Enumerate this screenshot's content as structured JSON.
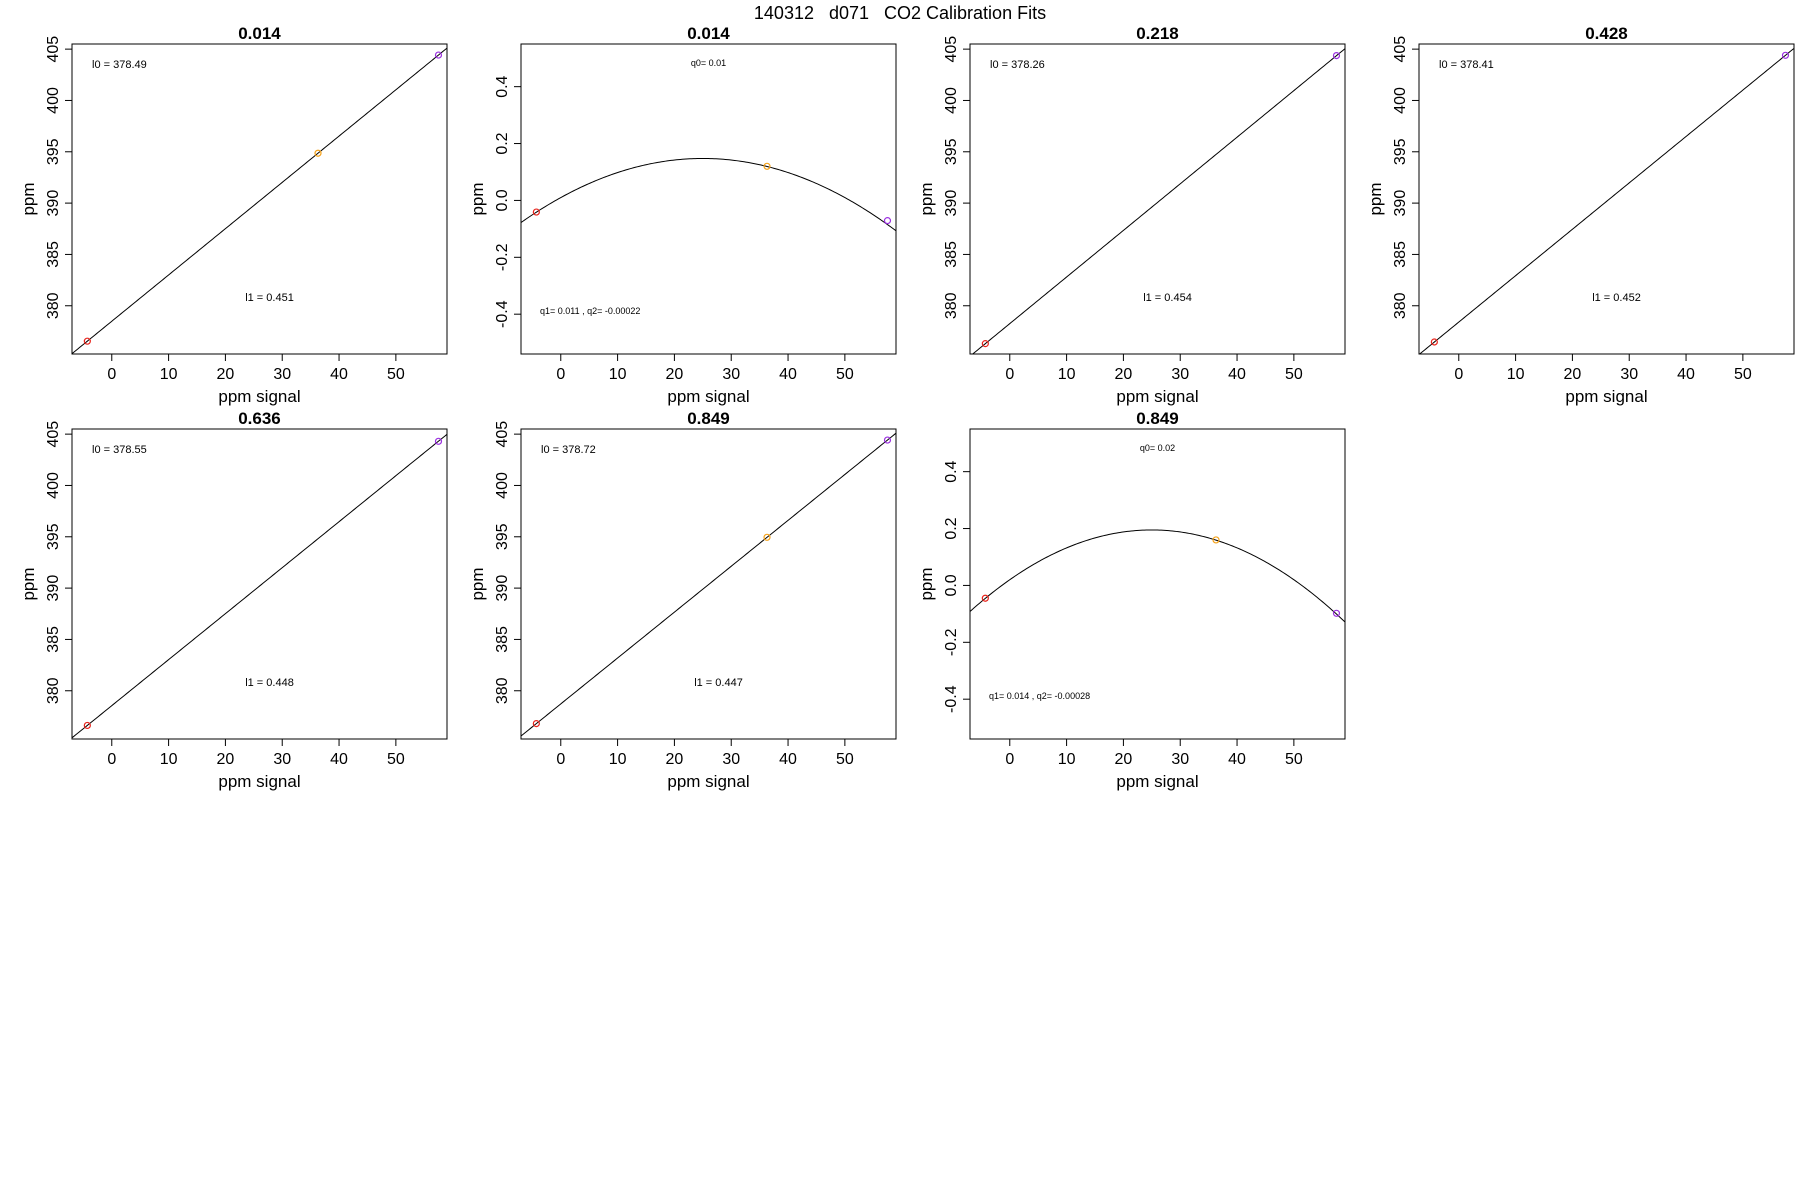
{
  "figure": {
    "title": "140312   d071   CO2 Calibration Fits"
  },
  "chart_data": [
    {
      "type": "scatter",
      "title": "0.014",
      "xlabel": "ppm signal",
      "ylabel": "ppm",
      "xlim": [
        -7,
        59
      ],
      "ylim": [
        375.3,
        405.5
      ],
      "x_ticks": [
        0,
        10,
        20,
        30,
        40,
        50
      ],
      "y_ticks": [
        380,
        385,
        390,
        395,
        400,
        405
      ],
      "fit": {
        "kind": "linear",
        "intercept": 378.49,
        "slope": 0.451
      },
      "annotations": [
        {
          "text": "l0 =  378.49",
          "pos": "top-left"
        },
        {
          "text": "l1 =  0.451",
          "pos": "bottom-center"
        }
      ],
      "points": [
        {
          "x": -4.3,
          "y": 376.55,
          "color": "#e8241c"
        },
        {
          "x": 36.3,
          "y": 394.86,
          "color": "#f5a21a"
        },
        {
          "x": 57.5,
          "y": 404.42,
          "color": "#9b30e0"
        }
      ]
    },
    {
      "type": "scatter",
      "title": "0.014",
      "xlabel": "ppm signal",
      "ylabel": "ppm",
      "xlim": [
        -7,
        59
      ],
      "ylim": [
        -0.54,
        0.55
      ],
      "x_ticks": [
        0,
        10,
        20,
        30,
        40,
        50
      ],
      "y_ticks": [
        -0.4,
        -0.2,
        0.0,
        0.2,
        0.4
      ],
      "y_tick_labels": [
        "-0.4",
        "-0.2",
        "0.0",
        "0.2",
        "0.4"
      ],
      "fit": {
        "kind": "quadratic",
        "q0": 0.01,
        "q1": 0.011,
        "q2": -0.00022
      },
      "annotations": [
        {
          "text": "q0= 0.01",
          "pos": "top-center"
        },
        {
          "text": "q1= 0.011 , q2= -0.00022",
          "pos": "bottom-left"
        }
      ],
      "points": [
        {
          "x": -4.3,
          "y": -0.041,
          "color": "#e8241c"
        },
        {
          "x": 36.3,
          "y": 0.12,
          "color": "#f5a21a"
        },
        {
          "x": 57.5,
          "y": -0.071,
          "color": "#9b30e0"
        }
      ]
    },
    {
      "type": "scatter",
      "title": "0.218",
      "xlabel": "ppm signal",
      "ylabel": "ppm",
      "xlim": [
        -7,
        59
      ],
      "ylim": [
        375.3,
        405.5
      ],
      "x_ticks": [
        0,
        10,
        20,
        30,
        40,
        50
      ],
      "y_ticks": [
        380,
        385,
        390,
        395,
        400,
        405
      ],
      "fit": {
        "kind": "linear",
        "intercept": 378.26,
        "slope": 0.454
      },
      "annotations": [
        {
          "text": "l0 =  378.26",
          "pos": "top-left"
        },
        {
          "text": "l1 =  0.454",
          "pos": "bottom-center"
        }
      ],
      "points": [
        {
          "x": -4.3,
          "y": 376.31,
          "color": "#e8241c"
        },
        {
          "x": 57.5,
          "y": 404.37,
          "color": "#9b30e0"
        }
      ]
    },
    {
      "type": "scatter",
      "title": "0.428",
      "xlabel": "ppm signal",
      "ylabel": "ppm",
      "xlim": [
        -7,
        59
      ],
      "ylim": [
        375.3,
        405.5
      ],
      "x_ticks": [
        0,
        10,
        20,
        30,
        40,
        50
      ],
      "y_ticks": [
        380,
        385,
        390,
        395,
        400,
        405
      ],
      "fit": {
        "kind": "linear",
        "intercept": 378.41,
        "slope": 0.452
      },
      "annotations": [
        {
          "text": "l0 =  378.41",
          "pos": "top-left"
        },
        {
          "text": "l1 =  0.452",
          "pos": "bottom-center"
        }
      ],
      "points": [
        {
          "x": -4.3,
          "y": 376.47,
          "color": "#e8241c"
        },
        {
          "x": 57.5,
          "y": 404.4,
          "color": "#9b30e0"
        }
      ]
    },
    {
      "type": "scatter",
      "title": "0.636",
      "xlabel": "ppm signal",
      "ylabel": "ppm",
      "xlim": [
        -7,
        59
      ],
      "ylim": [
        375.3,
        405.5
      ],
      "x_ticks": [
        0,
        10,
        20,
        30,
        40,
        50
      ],
      "y_ticks": [
        380,
        385,
        390,
        395,
        400,
        405
      ],
      "fit": {
        "kind": "linear",
        "intercept": 378.55,
        "slope": 0.448
      },
      "annotations": [
        {
          "text": "l0 =  378.55",
          "pos": "top-left"
        },
        {
          "text": "l1 =  0.448",
          "pos": "bottom-center"
        }
      ],
      "points": [
        {
          "x": -4.3,
          "y": 376.62,
          "color": "#e8241c"
        },
        {
          "x": 57.5,
          "y": 404.3,
          "color": "#9b30e0"
        }
      ]
    },
    {
      "type": "scatter",
      "title": "0.849",
      "xlabel": "ppm signal",
      "ylabel": "ppm",
      "xlim": [
        -7,
        59
      ],
      "ylim": [
        375.3,
        405.5
      ],
      "x_ticks": [
        0,
        10,
        20,
        30,
        40,
        50
      ],
      "y_ticks": [
        380,
        385,
        390,
        395,
        400,
        405
      ],
      "fit": {
        "kind": "linear",
        "intercept": 378.72,
        "slope": 0.447
      },
      "annotations": [
        {
          "text": "l0 =  378.72",
          "pos": "top-left"
        },
        {
          "text": "l1 =  0.447",
          "pos": "bottom-center"
        }
      ],
      "points": [
        {
          "x": -4.3,
          "y": 376.8,
          "color": "#e8241c"
        },
        {
          "x": 36.3,
          "y": 394.95,
          "color": "#f5a21a"
        },
        {
          "x": 57.5,
          "y": 404.42,
          "color": "#9b30e0"
        }
      ]
    },
    {
      "type": "scatter",
      "title": "0.849",
      "xlabel": "ppm signal",
      "ylabel": "ppm",
      "xlim": [
        -7,
        59
      ],
      "ylim": [
        -0.54,
        0.55
      ],
      "x_ticks": [
        0,
        10,
        20,
        30,
        40,
        50
      ],
      "y_ticks": [
        -0.4,
        -0.2,
        0.0,
        0.2,
        0.4
      ],
      "y_tick_labels": [
        "-0.4",
        "-0.2",
        "0.0",
        "0.2",
        "0.4"
      ],
      "fit": {
        "kind": "quadratic",
        "q0": 0.02,
        "q1": 0.014,
        "q2": -0.00028
      },
      "annotations": [
        {
          "text": "q0= 0.02",
          "pos": "top-center"
        },
        {
          "text": "q1= 0.014 , q2= -0.00028",
          "pos": "bottom-left"
        }
      ],
      "points": [
        {
          "x": -4.3,
          "y": -0.045,
          "color": "#e8241c"
        },
        {
          "x": 36.3,
          "y": 0.16,
          "color": "#f5a21a"
        },
        {
          "x": 57.5,
          "y": -0.098,
          "color": "#9b30e0"
        }
      ]
    }
  ]
}
